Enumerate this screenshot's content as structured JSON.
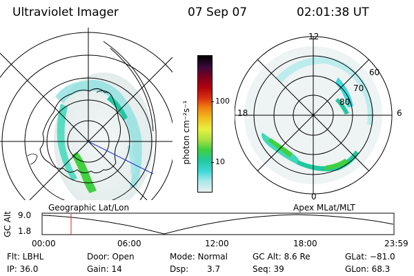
{
  "header": {
    "instrument": "Ultraviolet Imager",
    "date": "07 Sep 07",
    "time": "02:01:38 UT"
  },
  "left_map": {
    "label": "Geographic Lat/Lon"
  },
  "right_map": {
    "label": "Apex MLat/MLT",
    "mlt_labels": {
      "top": "12",
      "left": "18",
      "right": "6",
      "bottom": "0"
    },
    "lat_labels": [
      "60",
      "70",
      "80"
    ]
  },
  "colorbar": {
    "unit_label": "photon cm⁻²s⁻¹",
    "ticks": [
      "100",
      "10"
    ],
    "colors": [
      "#000000",
      "#3a0a3a",
      "#7a0020",
      "#b00010",
      "#d83010",
      "#f08010",
      "#f0c020",
      "#e8f040",
      "#a8e040",
      "#40d040",
      "#20c8a0",
      "#40d8d8",
      "#a8e8e8",
      "#e8f0f0"
    ]
  },
  "timeline": {
    "ylabel": "GC Alt",
    "ytick_top": "9.0",
    "ytick_bottom": "1.8",
    "xticks": [
      "00:00",
      "06:00",
      "12:00",
      "18:00",
      "23:59"
    ],
    "marker_color": "#e02020"
  },
  "info": {
    "filter": "Flt: LBHL",
    "ip": "IP: 36.0",
    "door": "Door: Open",
    "gain": "Gain: 14",
    "mode": "Mode: Normal",
    "dsp_label": "Dsp:",
    "dsp_value": "3.7",
    "gc_alt": "GC Alt: 8.6 Re",
    "seq": "Seq: 39",
    "glat": "GLat: −81.0",
    "glon": "GLon:  68.3"
  }
}
